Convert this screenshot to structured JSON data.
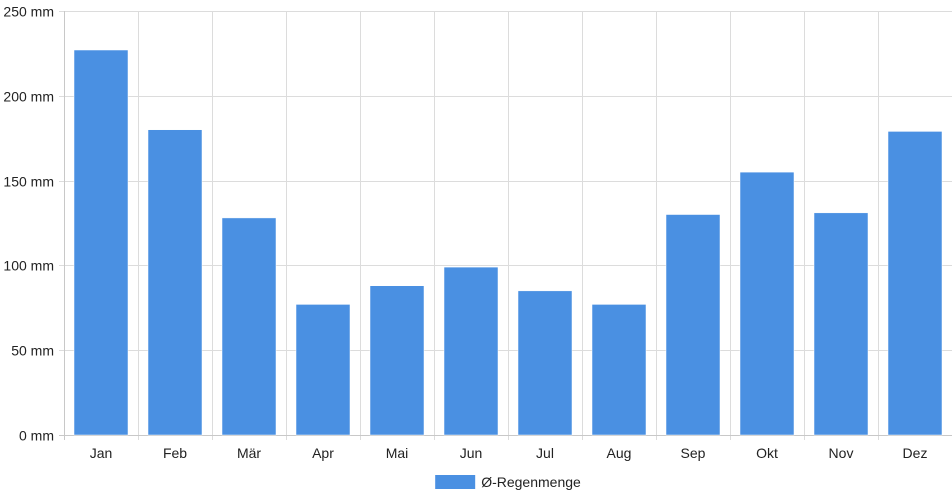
{
  "chart_data": {
    "type": "bar",
    "categories": [
      "Jan",
      "Feb",
      "Mär",
      "Apr",
      "Mai",
      "Jun",
      "Jul",
      "Aug",
      "Sep",
      "Okt",
      "Nov",
      "Dez"
    ],
    "series": [
      {
        "name": "Ø-Regenmenge",
        "values": [
          227,
          180,
          128,
          77,
          88,
          99,
          85,
          77,
          130,
          155,
          131,
          179
        ],
        "color": "#4a90e2"
      }
    ],
    "title": "",
    "xlabel": "",
    "ylabel": "",
    "ylim": [
      0,
      250
    ],
    "yticks": [
      {
        "value": 0,
        "label": "0 mm"
      },
      {
        "value": 50,
        "label": "50 mm"
      },
      {
        "value": 100,
        "label": "100 mm"
      },
      {
        "value": 150,
        "label": "150 mm"
      },
      {
        "value": 200,
        "label": "200 mm"
      },
      {
        "value": 250,
        "label": "250 mm"
      }
    ],
    "grid": true,
    "legend_position": "bottom"
  }
}
